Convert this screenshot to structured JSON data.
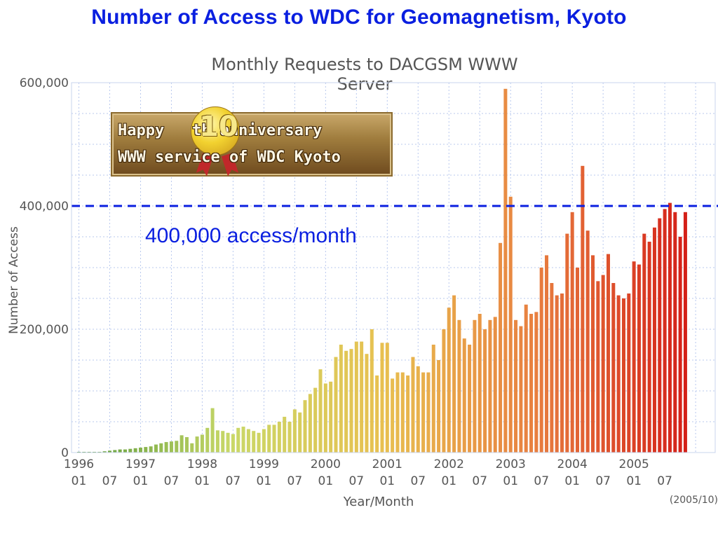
{
  "slide_title": "Number of Access to WDC for Geomagnetism, Kyoto",
  "banner": {
    "line1": "Happy   th anniversary",
    "medal_number": "10",
    "line2": "WWW service of WDC Kyoto"
  },
  "annotation": "400,000 access/month",
  "footnote": "(2005/10)",
  "colors": {
    "title": "#0a1fe0",
    "reference_line": "#0a1fe0",
    "grid": "#b8c8ee",
    "bar_gradient": [
      "#5a9a3a",
      "#c9d868",
      "#e8c050",
      "#e88040",
      "#d42018"
    ]
  },
  "chart_data": {
    "type": "bar",
    "title": "Monthly Requests to DACGSM WWW Server",
    "xlabel": "Year/Month",
    "ylabel": "Number of Access",
    "ylim": [
      0,
      600000
    ],
    "yticks": [
      "0",
      "200,000",
      "400,000",
      "600,000"
    ],
    "ytick_values": [
      0,
      200000,
      400000,
      600000
    ],
    "xtick_years": [
      "1996",
      "1997",
      "1998",
      "1999",
      "2000",
      "2001",
      "2002",
      "2003",
      "2004",
      "2005"
    ],
    "xtick_months": [
      "01",
      "07"
    ],
    "grid": true,
    "reference_line": {
      "value": 400000,
      "style": "dashed"
    },
    "start": "1996-01",
    "values": [
      0,
      0,
      1000,
      1000,
      1000,
      2000,
      3000,
      4000,
      5000,
      5000,
      6000,
      7000,
      8000,
      9000,
      10000,
      13000,
      15000,
      17000,
      18000,
      19000,
      28000,
      25000,
      15000,
      26000,
      29000,
      40000,
      72000,
      36000,
      35000,
      32000,
      30000,
      40000,
      42000,
      38000,
      35000,
      32000,
      38000,
      45000,
      45000,
      50000,
      58000,
      50000,
      70000,
      65000,
      85000,
      95000,
      105000,
      135000,
      112000,
      115000,
      155000,
      175000,
      165000,
      168000,
      180000,
      180000,
      160000,
      200000,
      125000,
      178000,
      178000,
      120000,
      130000,
      130000,
      125000,
      155000,
      140000,
      130000,
      130000,
      175000,
      150000,
      200000,
      235000,
      255000,
      215000,
      185000,
      175000,
      215000,
      225000,
      200000,
      215000,
      220000,
      340000,
      590000,
      415000,
      215000,
      205000,
      240000,
      225000,
      228000,
      300000,
      320000,
      275000,
      255000,
      258000,
      355000,
      390000,
      300000,
      465000,
      360000,
      320000,
      278000,
      288000,
      322000,
      275000,
      255000,
      250000,
      258000,
      310000,
      305000,
      355000,
      342000,
      365000,
      380000,
      395000,
      405000,
      390000,
      350000,
      390000
    ]
  }
}
